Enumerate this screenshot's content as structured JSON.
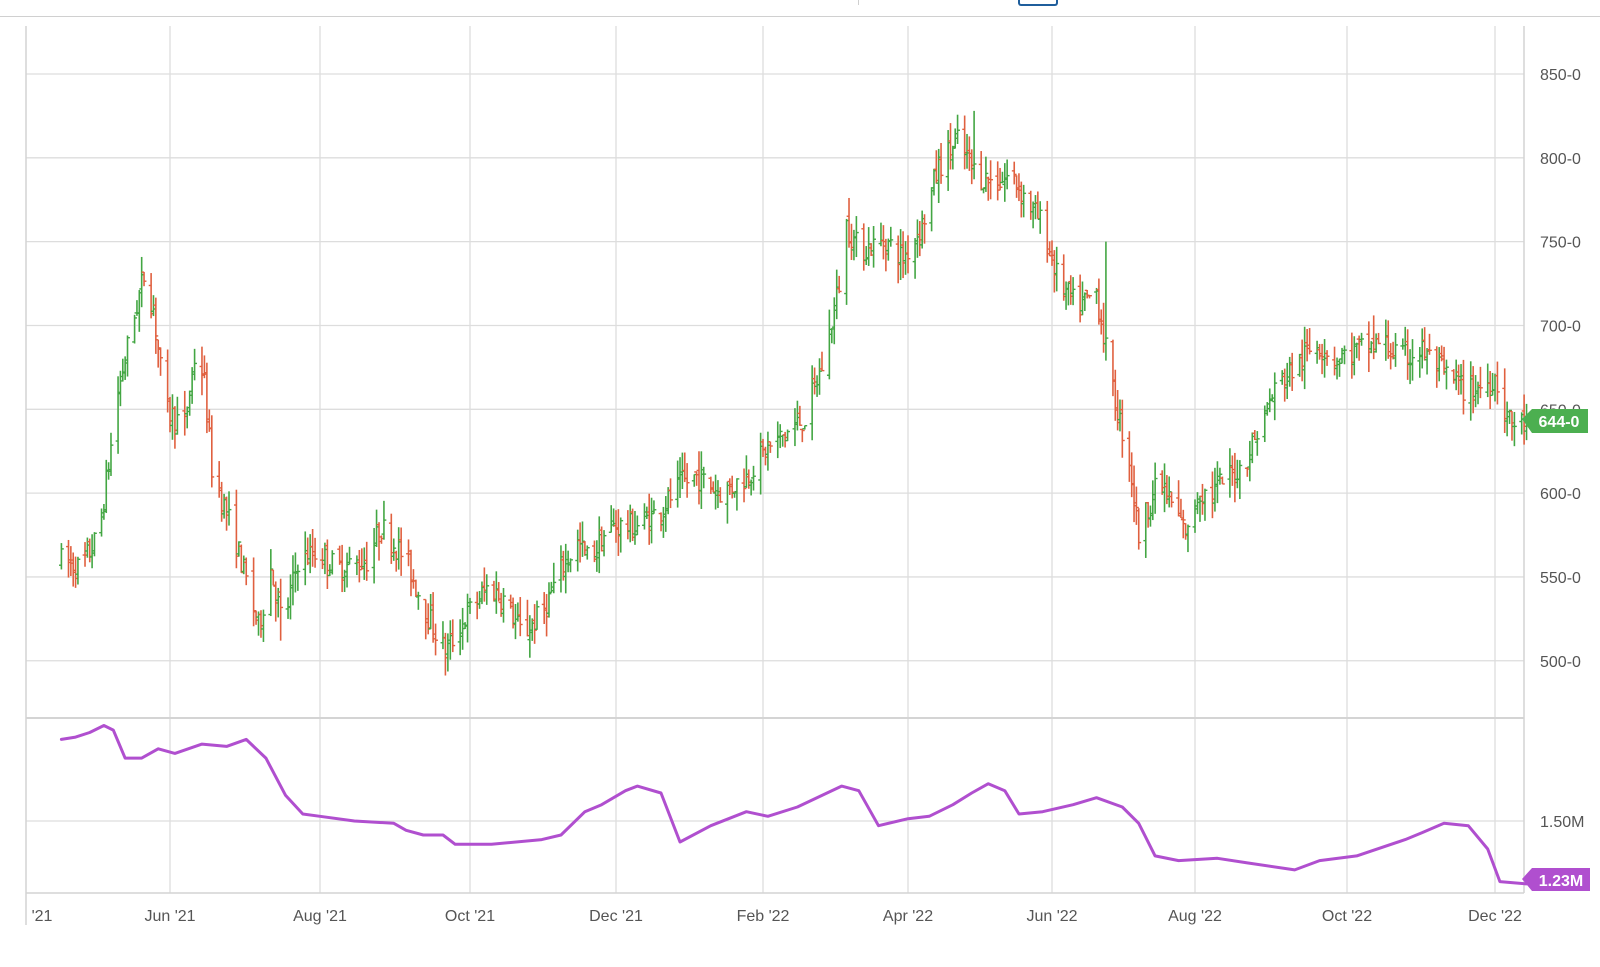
{
  "price_tag": "644-0",
  "volume_tag": "1.23M",
  "chart_data": [
    {
      "type": "ohlc",
      "x_ticks": [
        "'21",
        "Jun '21",
        "Aug '21",
        "Oct '21",
        "Dec '21",
        "Feb '22",
        "Apr '22",
        "Jun '22",
        "Aug '22",
        "Oct '22",
        "Dec '22"
      ],
      "y_ticks": [
        "850-0",
        "800-0",
        "750-0",
        "700-0",
        "650-0",
        "600-0",
        "550-0",
        "500-0"
      ],
      "ylim": [
        465,
        880
      ],
      "grid": true,
      "up_color": "#43a643",
      "down_color": "#e0603f",
      "anchors": [
        [
          "2021-04-16",
          560
        ],
        [
          "2021-04-24",
          555
        ],
        [
          "2021-05-02",
          575
        ],
        [
          "2021-05-10",
          660
        ],
        [
          "2021-05-16",
          700
        ],
        [
          "2021-05-21",
          730
        ],
        [
          "2021-05-25",
          710
        ],
        [
          "2021-05-30",
          650
        ],
        [
          "2021-06-07",
          640
        ],
        [
          "2021-06-12",
          690
        ],
        [
          "2021-06-15",
          665
        ],
        [
          "2021-06-18",
          615
        ],
        [
          "2021-06-28",
          570
        ],
        [
          "2021-07-07",
          520
        ],
        [
          "2021-07-12",
          555
        ],
        [
          "2021-07-17",
          520
        ],
        [
          "2021-07-23",
          560
        ],
        [
          "2021-07-31",
          565
        ],
        [
          "2021-08-08",
          555
        ],
        [
          "2021-08-20",
          560
        ],
        [
          "2021-08-26",
          580
        ],
        [
          "2021-09-05",
          560
        ],
        [
          "2021-09-13",
          530
        ],
        [
          "2021-09-21",
          505
        ],
        [
          "2021-10-01",
          530
        ],
        [
          "2021-10-09",
          545
        ],
        [
          "2021-10-16",
          535
        ],
        [
          "2021-10-23",
          515
        ],
        [
          "2021-11-01",
          530
        ],
        [
          "2021-11-08",
          555
        ],
        [
          "2021-11-15",
          570
        ],
        [
          "2021-11-20",
          560
        ],
        [
          "2021-11-28",
          580
        ],
        [
          "2021-12-09",
          580
        ],
        [
          "2021-12-20",
          590
        ],
        [
          "2021-12-28",
          605
        ],
        [
          "2022-01-04",
          610
        ],
        [
          "2022-01-15",
          600
        ],
        [
          "2022-01-25",
          610
        ],
        [
          "2022-02-02",
          625
        ],
        [
          "2022-02-10",
          635
        ],
        [
          "2022-02-18",
          645
        ],
        [
          "2022-02-26",
          680
        ],
        [
          "2022-03-04",
          725
        ],
        [
          "2022-03-07",
          760
        ],
        [
          "2022-03-12",
          745
        ],
        [
          "2022-03-23",
          750
        ],
        [
          "2022-03-30",
          740
        ],
        [
          "2022-04-07",
          760
        ],
        [
          "2022-04-14",
          795
        ],
        [
          "2022-04-22",
          810
        ],
        [
          "2022-04-30",
          790
        ],
        [
          "2022-05-08",
          785
        ],
        [
          "2022-05-15",
          790
        ],
        [
          "2022-05-21",
          775
        ],
        [
          "2022-05-28",
          760
        ],
        [
          "2022-06-04",
          725
        ],
        [
          "2022-06-12",
          710
        ],
        [
          "2022-06-20",
          720
        ],
        [
          "2022-06-27",
          660
        ],
        [
          "2022-07-04",
          620
        ],
        [
          "2022-07-08",
          575
        ],
        [
          "2022-07-14",
          600
        ],
        [
          "2022-07-18",
          605
        ],
        [
          "2022-07-23",
          590
        ],
        [
          "2022-07-29",
          575
        ],
        [
          "2022-08-02",
          600
        ],
        [
          "2022-08-08",
          600
        ],
        [
          "2022-08-14",
          610
        ],
        [
          "2022-08-20",
          615
        ],
        [
          "2022-08-27",
          640
        ],
        [
          "2022-09-03",
          665
        ],
        [
          "2022-09-10",
          675
        ],
        [
          "2022-09-19",
          690
        ],
        [
          "2022-09-26",
          680
        ],
        [
          "2022-10-06",
          685
        ],
        [
          "2022-10-16",
          690
        ],
        [
          "2022-10-23",
          680
        ],
        [
          "2022-11-01",
          685
        ],
        [
          "2022-11-11",
          670
        ],
        [
          "2022-11-20",
          660
        ],
        [
          "2022-11-27",
          665
        ],
        [
          "2022-12-01",
          670
        ],
        [
          "2022-12-06",
          645
        ],
        [
          "2022-12-10",
          640
        ],
        [
          "2022-12-14",
          644
        ]
      ],
      "extremes": [
        [
          "2021-05-23",
          735,
          "high"
        ],
        [
          "2021-06-12",
          697,
          "high"
        ],
        [
          "2021-07-16",
          512,
          "low"
        ],
        [
          "2021-09-22",
          495,
          "low"
        ],
        [
          "2022-03-05",
          782,
          "high"
        ],
        [
          "2022-04-29",
          828,
          "high"
        ],
        [
          "2022-06-24",
          750,
          "high"
        ],
        [
          "2022-07-08",
          567,
          "low"
        ],
        [
          "2022-07-30",
          563,
          "low"
        ],
        [
          "2022-10-12",
          706,
          "high"
        ],
        [
          "2022-12-08",
          635,
          "low"
        ]
      ],
      "last": 644
    },
    {
      "type": "line",
      "x_ticks": [
        "'21",
        "Jun '21",
        "Aug '21",
        "Oct '21",
        "Dec '21",
        "Feb '22",
        "Apr '22",
        "Jun '22",
        "Aug '22",
        "Oct '22",
        "Dec '22"
      ],
      "y_ticks": [
        "1.50M"
      ],
      "color": "#b04fcf",
      "points": [
        [
          "2021-04-16",
          1.85
        ],
        [
          "2021-04-22",
          1.86
        ],
        [
          "2021-04-28",
          1.88
        ],
        [
          "2021-05-04",
          1.91
        ],
        [
          "2021-05-08",
          1.89
        ],
        [
          "2021-05-13",
          1.77
        ],
        [
          "2021-05-20",
          1.77
        ],
        [
          "2021-05-27",
          1.81
        ],
        [
          "2021-06-03",
          1.79
        ],
        [
          "2021-06-14",
          1.83
        ],
        [
          "2021-06-24",
          1.82
        ],
        [
          "2021-07-02",
          1.85
        ],
        [
          "2021-07-10",
          1.77
        ],
        [
          "2021-07-18",
          1.61
        ],
        [
          "2021-07-25",
          1.53
        ],
        [
          "2021-08-01",
          1.52
        ],
        [
          "2021-08-15",
          1.5
        ],
        [
          "2021-08-31",
          1.49
        ],
        [
          "2021-09-05",
          1.46
        ],
        [
          "2021-09-12",
          1.44
        ],
        [
          "2021-09-20",
          1.44
        ],
        [
          "2021-09-25",
          1.4
        ],
        [
          "2021-10-10",
          1.4
        ],
        [
          "2021-10-31",
          1.42
        ],
        [
          "2021-11-08",
          1.44
        ],
        [
          "2021-11-18",
          1.54
        ],
        [
          "2021-11-25",
          1.57
        ],
        [
          "2021-12-05",
          1.63
        ],
        [
          "2021-12-10",
          1.65
        ],
        [
          "2021-12-20",
          1.62
        ],
        [
          "2021-12-28",
          1.41
        ],
        [
          "2022-01-10",
          1.48
        ],
        [
          "2022-01-25",
          1.54
        ],
        [
          "2022-02-03",
          1.52
        ],
        [
          "2022-02-15",
          1.56
        ],
        [
          "2022-02-25",
          1.61
        ],
        [
          "2022-03-05",
          1.65
        ],
        [
          "2022-03-12",
          1.63
        ],
        [
          "2022-03-20",
          1.48
        ],
        [
          "2022-04-01",
          1.51
        ],
        [
          "2022-04-10",
          1.52
        ],
        [
          "2022-04-20",
          1.57
        ],
        [
          "2022-04-28",
          1.62
        ],
        [
          "2022-05-05",
          1.66
        ],
        [
          "2022-05-12",
          1.63
        ],
        [
          "2022-05-18",
          1.53
        ],
        [
          "2022-05-28",
          1.54
        ],
        [
          "2022-06-10",
          1.57
        ],
        [
          "2022-06-20",
          1.6
        ],
        [
          "2022-07-01",
          1.56
        ],
        [
          "2022-07-08",
          1.49
        ],
        [
          "2022-07-15",
          1.35
        ],
        [
          "2022-07-25",
          1.33
        ],
        [
          "2022-08-10",
          1.34
        ],
        [
          "2022-08-22",
          1.32
        ],
        [
          "2022-09-10",
          1.29
        ],
        [
          "2022-09-20",
          1.33
        ],
        [
          "2022-10-05",
          1.35
        ],
        [
          "2022-10-25",
          1.42
        ],
        [
          "2022-11-01",
          1.45
        ],
        [
          "2022-11-10",
          1.49
        ],
        [
          "2022-11-20",
          1.48
        ],
        [
          "2022-11-28",
          1.38
        ],
        [
          "2022-12-03",
          1.24
        ],
        [
          "2022-12-14",
          1.23
        ]
      ],
      "last": 1.23
    }
  ]
}
